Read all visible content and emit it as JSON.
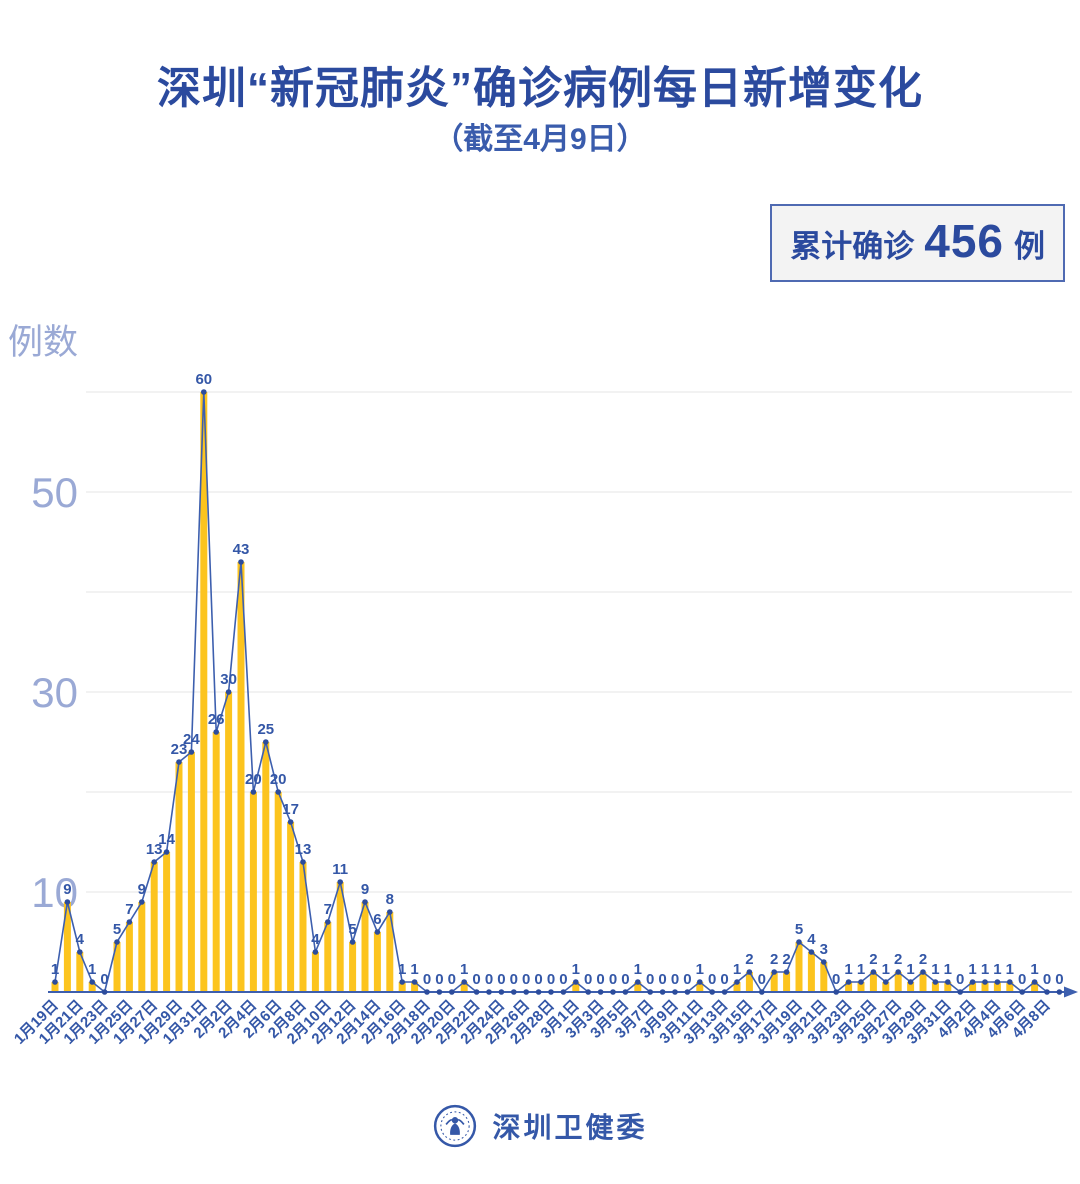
{
  "chart_data": {
    "type": "bar",
    "line_overlay": true,
    "title": "深圳“新冠肺炎”确诊病例每日新增变化",
    "subtitle": "（截至4月9日）",
    "xlabel": "",
    "ylabel": "例数",
    "ylim": [
      0,
      62
    ],
    "grid": true,
    "legend": false,
    "yticks_labeled": [
      10,
      30,
      50
    ],
    "gridlines": [
      10,
      20,
      30,
      40,
      50,
      60
    ],
    "x_label_every": 2,
    "categories": [
      "1月19日",
      "1月20日",
      "1月21日",
      "1月22日",
      "1月23日",
      "1月24日",
      "1月25日",
      "1月26日",
      "1月27日",
      "1月28日",
      "1月29日",
      "1月30日",
      "1月31日",
      "2月1日",
      "2月2日",
      "2月3日",
      "2月4日",
      "2月5日",
      "2月6日",
      "2月7日",
      "2月8日",
      "2月9日",
      "2月10日",
      "2月11日",
      "2月12日",
      "2月13日",
      "2月14日",
      "2月15日",
      "2月16日",
      "2月17日",
      "2月18日",
      "2月19日",
      "2月20日",
      "2月21日",
      "2月22日",
      "2月23日",
      "2月24日",
      "2月25日",
      "2月26日",
      "2月27日",
      "2月28日",
      "2月29日",
      "3月1日",
      "3月2日",
      "3月3日",
      "3月4日",
      "3月5日",
      "3月6日",
      "3月7日",
      "3月8日",
      "3月9日",
      "3月10日",
      "3月11日",
      "3月12日",
      "3月13日",
      "3月14日",
      "3月15日",
      "3月16日",
      "3月17日",
      "3月18日",
      "3月19日",
      "3月20日",
      "3月21日",
      "3月22日",
      "3月23日",
      "3月24日",
      "3月25日",
      "3月26日",
      "3月27日",
      "3月28日",
      "3月29日",
      "3月30日",
      "3月31日",
      "4月1日",
      "4月2日",
      "4月3日",
      "4月4日",
      "4月5日",
      "4月6日",
      "4月7日",
      "4月8日",
      "4月9日"
    ],
    "values": [
      1,
      9,
      4,
      1,
      0,
      5,
      7,
      9,
      13,
      14,
      23,
      24,
      60,
      26,
      30,
      43,
      20,
      25,
      20,
      17,
      13,
      4,
      7,
      11,
      5,
      9,
      6,
      8,
      1,
      1,
      0,
      0,
      0,
      1,
      0,
      0,
      0,
      0,
      0,
      0,
      0,
      0,
      1,
      0,
      0,
      0,
      0,
      1,
      0,
      0,
      0,
      0,
      1,
      0,
      0,
      1,
      2,
      0,
      2,
      2,
      5,
      4,
      3,
      0,
      1,
      1,
      2,
      1,
      2,
      1,
      2,
      1,
      1,
      0,
      1,
      1,
      1,
      1,
      0,
      1,
      0,
      0
    ]
  },
  "badge": {
    "prefix": "累计确诊",
    "value": "456",
    "suffix": "例"
  },
  "footer": {
    "org": "深圳卫健委"
  },
  "colors": {
    "title": "#2B4A9E",
    "subtitle": "#3A5CAC",
    "bar": "#FCC41E",
    "line": "#3D5FAE",
    "dot": "#2C4C9C",
    "label": "#3457A7",
    "axis": "#3D5FAE",
    "grid": "#EBEBEB",
    "ytick": "#9AA9D5",
    "badge_border": "#4F6AB2",
    "badge_bg": "#F3F3F3",
    "badge_text": "#2B4A9E",
    "footer": "#3558A8"
  }
}
